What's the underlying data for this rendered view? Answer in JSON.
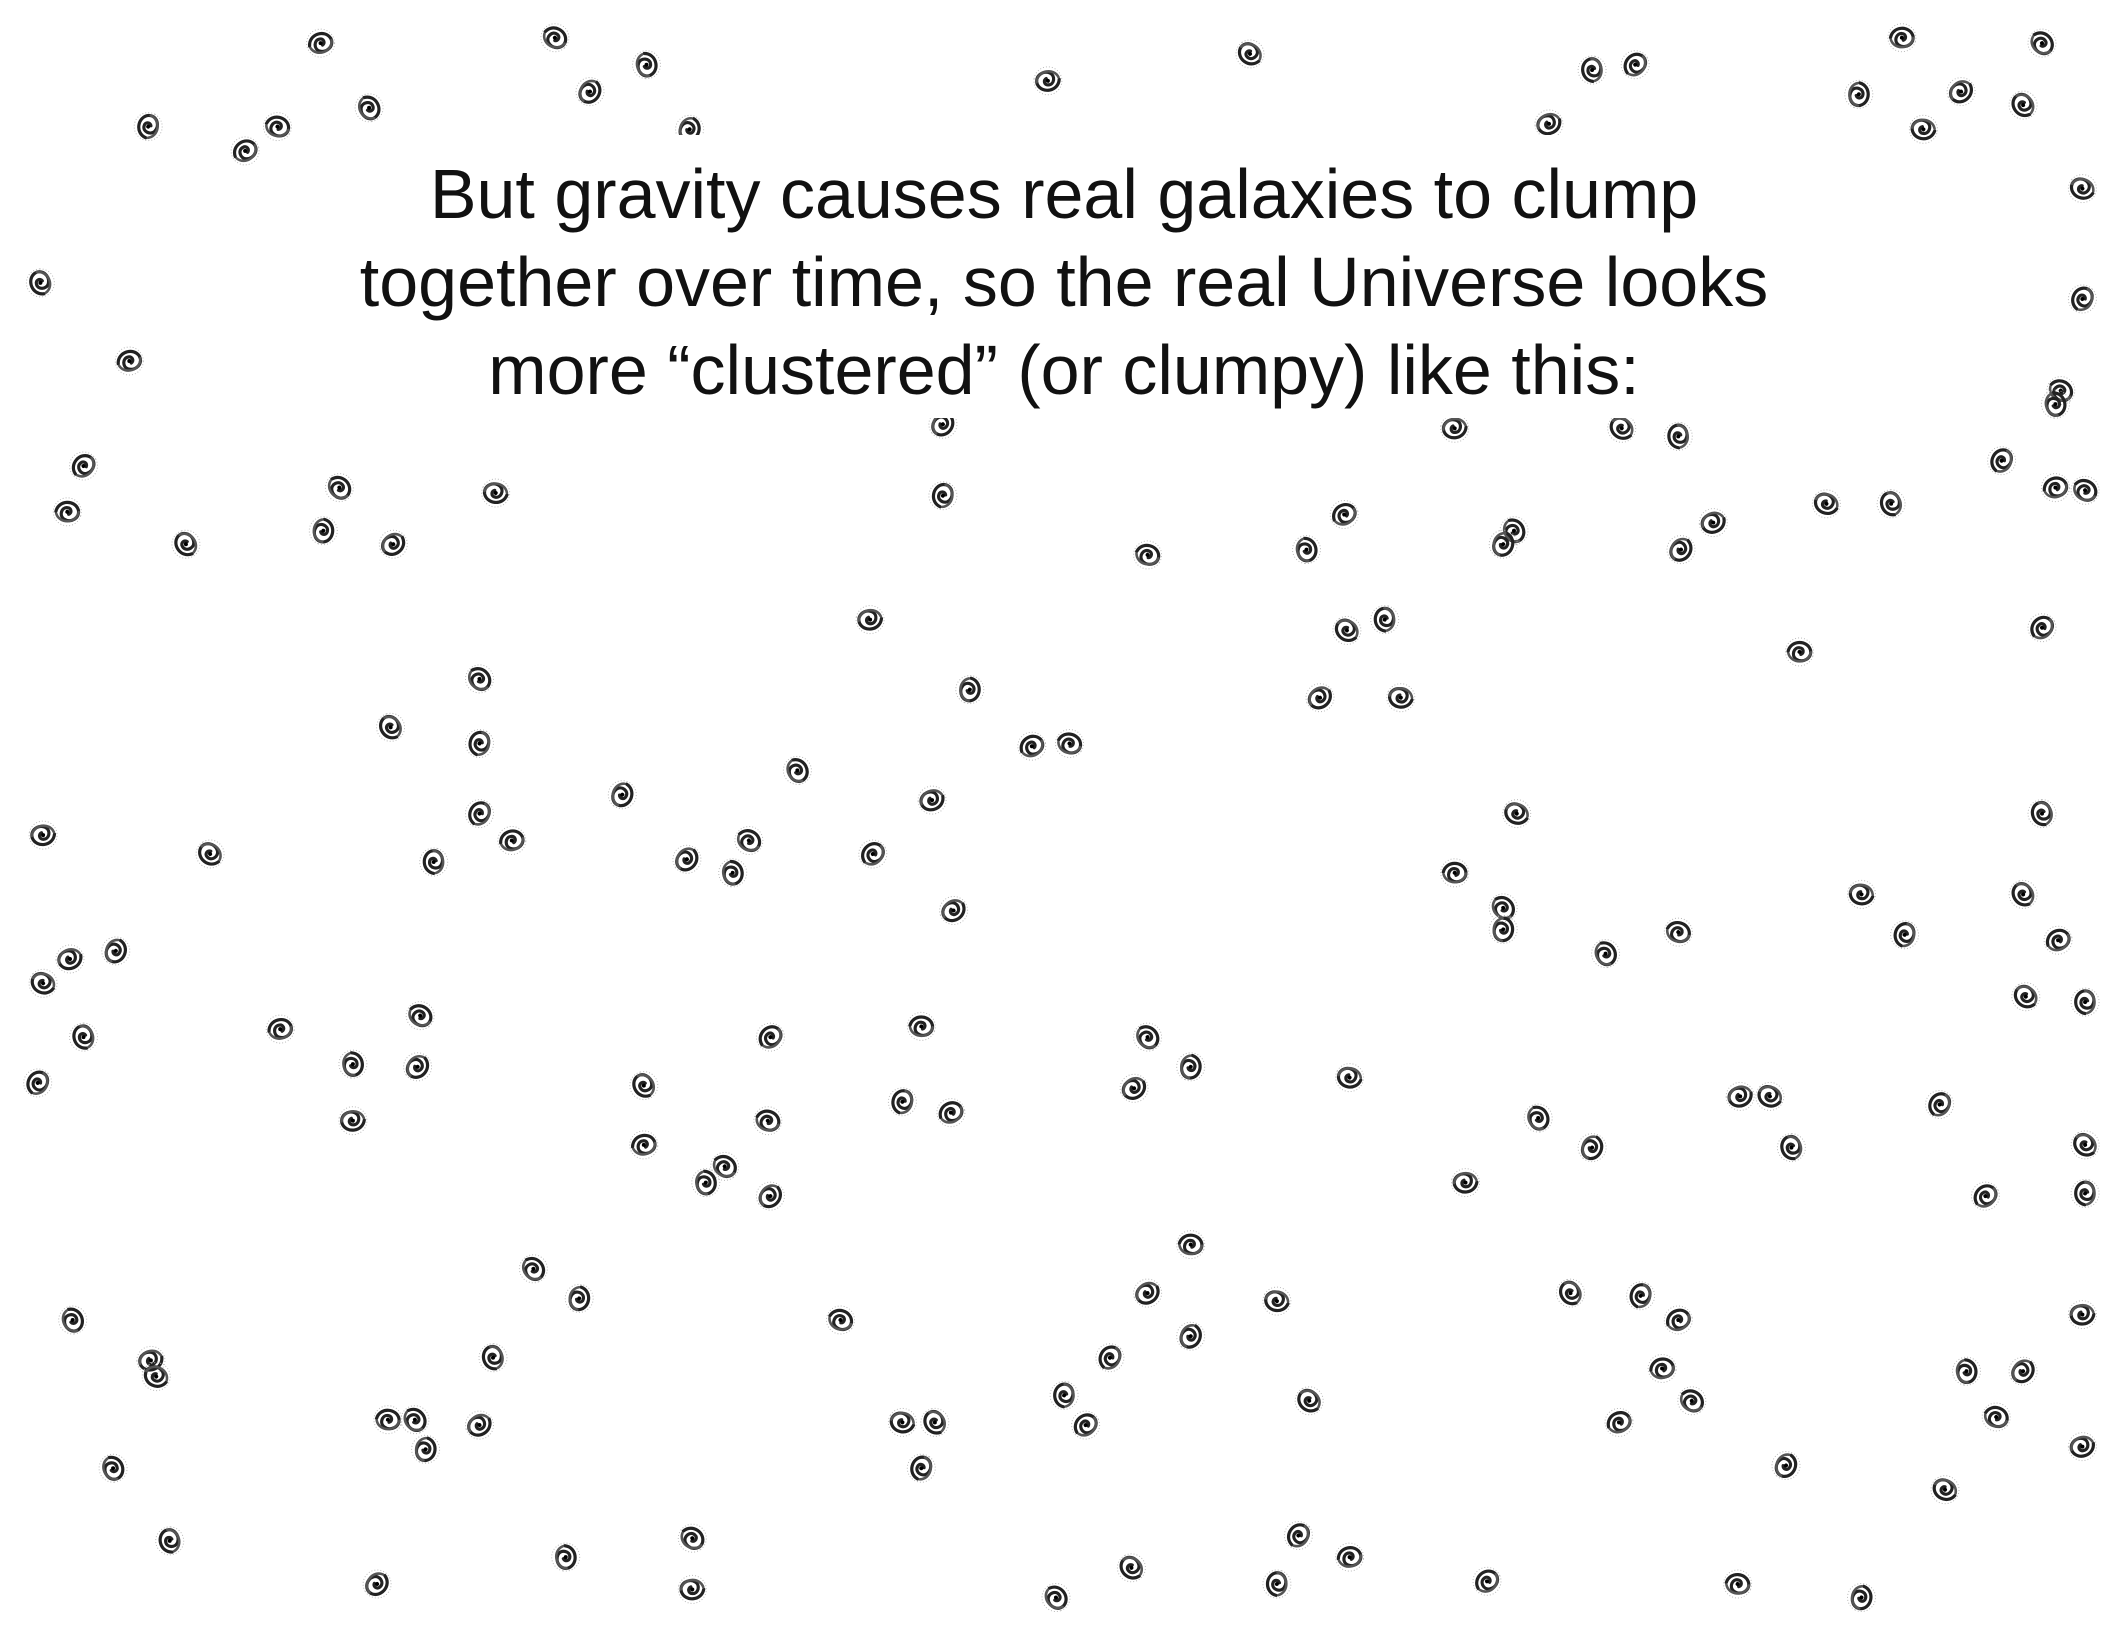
{
  "slide": {
    "text_lines": [
      "But gravity causes real galaxies to clump",
      "together over time, so the real Universe looks",
      "more “clustered” (or clumpy) like this:"
    ]
  }
}
